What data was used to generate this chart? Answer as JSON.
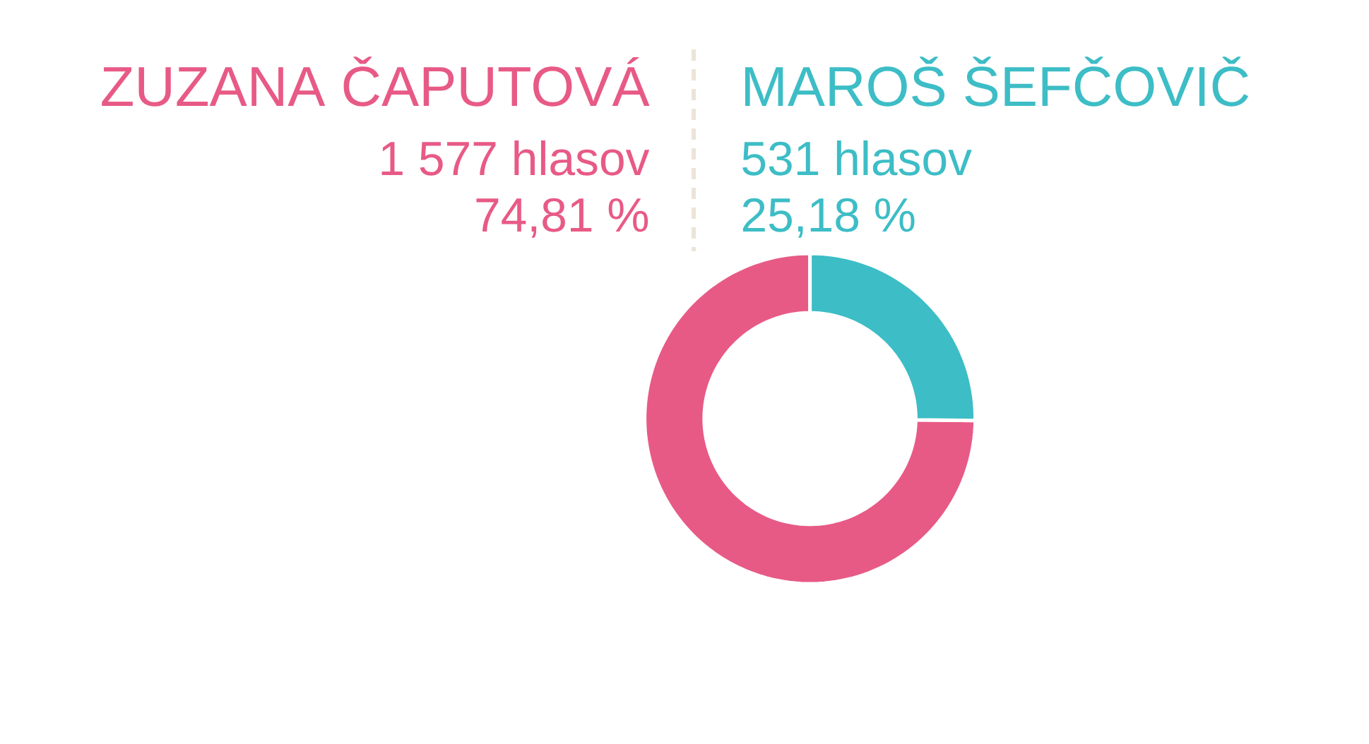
{
  "chart_data": {
    "type": "donut",
    "categories": [
      "ZUZANA ČAPUTOVÁ",
      "MAROŠ ŠEFČOVIČ"
    ],
    "values": [
      1577,
      531
    ],
    "colors": [
      "#e85a86",
      "#3dbdc6"
    ],
    "value_labels": [
      "1 577 hlasov",
      "531 hlasov"
    ],
    "annotations": [
      "74,81 %",
      "25,18 %"
    ]
  }
}
